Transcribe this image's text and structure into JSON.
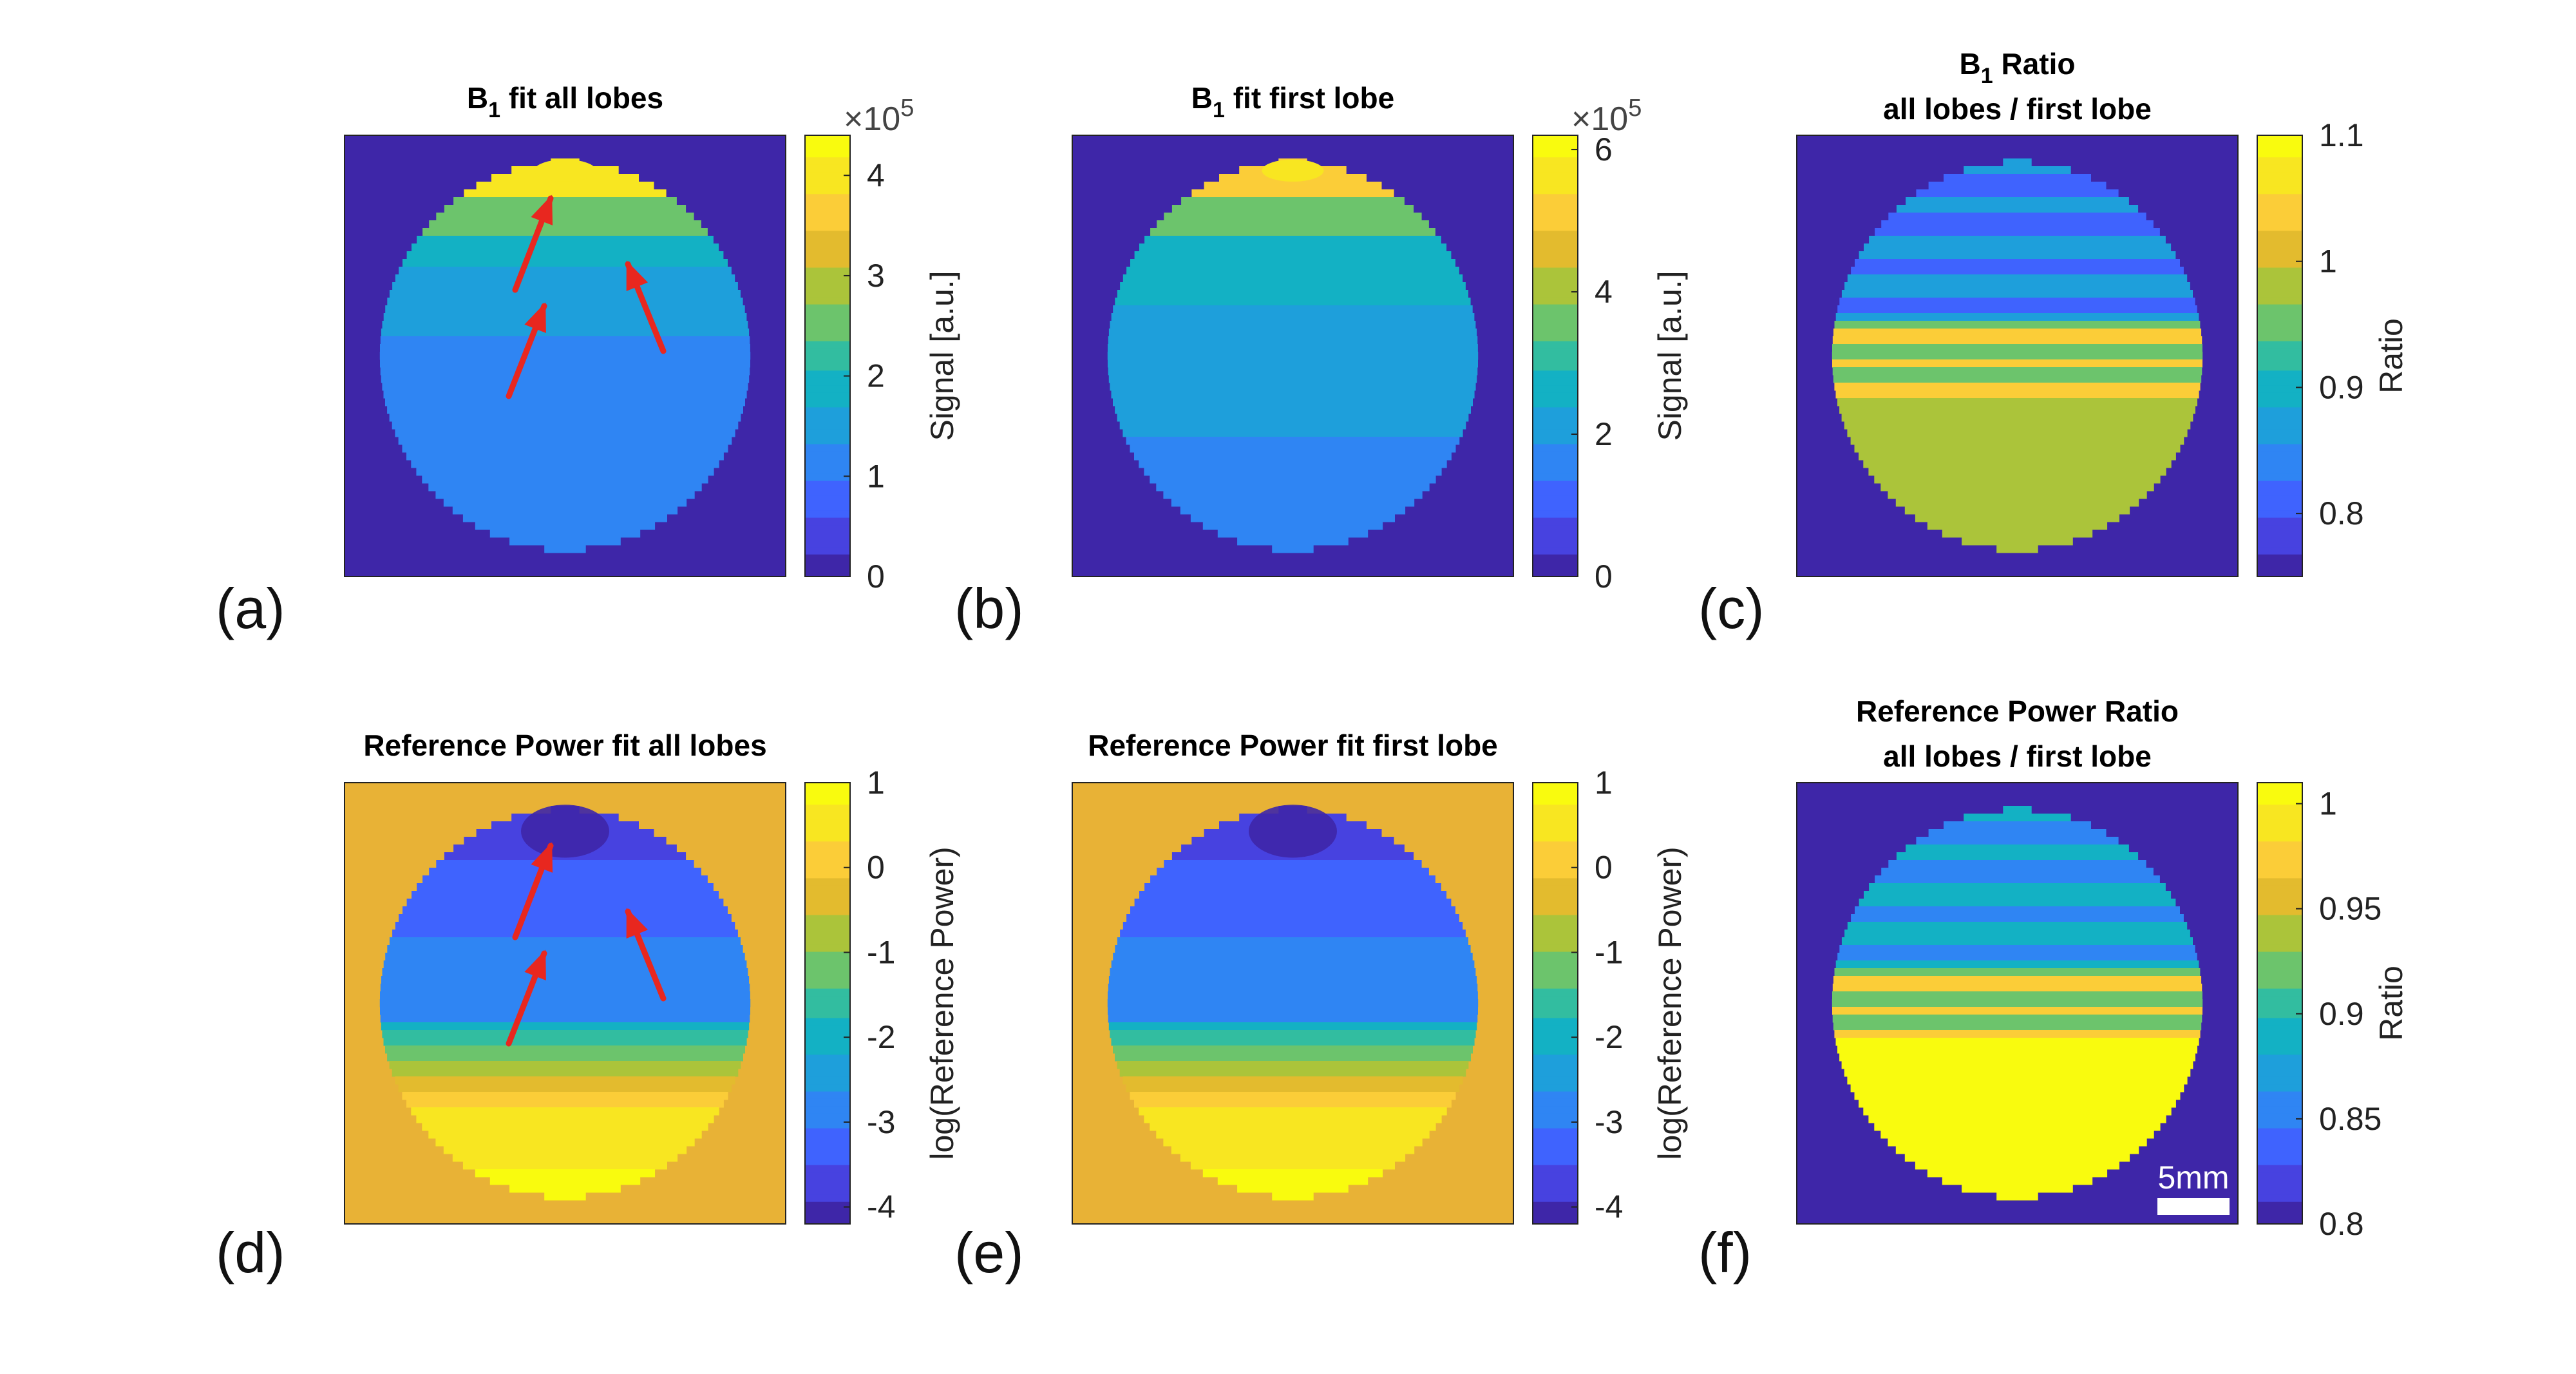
{
  "colors": {
    "parula": [
      "#3e26a8",
      "#4742e0",
      "#3f63fe",
      "#2f85f3",
      "#1e9fdb",
      "#13b1c4",
      "#32bda0",
      "#6cc46c",
      "#abc43a",
      "#e3bb2e",
      "#fbcd38",
      "#f8e621",
      "#f9fb0e"
    ],
    "arrow": "#e8271f",
    "background_blue": "#3e26a8",
    "background_gold": "#e8b236",
    "scalebar": "#ffffff"
  },
  "panels": [
    {
      "id": "a",
      "label": "(a)",
      "title": [
        "B",
        "1",
        " fit all lobes"
      ],
      "map": "b1_all",
      "colorbar": {
        "ticks": [
          "0",
          "1",
          "2",
          "3",
          "4"
        ],
        "tick_values": [
          0,
          1,
          2,
          3,
          4
        ],
        "range": [
          0,
          4.4
        ],
        "label": "Signal [a.u.]",
        "exponent": [
          "×10",
          "5"
        ]
      },
      "arrows": true
    },
    {
      "id": "b",
      "label": "(b)",
      "title": [
        "B",
        "1",
        " fit first lobe"
      ],
      "map": "b1_first",
      "colorbar": {
        "ticks": [
          "0",
          "2",
          "4",
          "6"
        ],
        "tick_values": [
          0,
          2,
          4,
          6
        ],
        "range": [
          0,
          6.2
        ],
        "label": "Signal [a.u.]",
        "exponent": [
          "×10",
          "5"
        ]
      },
      "arrows": false
    },
    {
      "id": "c",
      "label": "(c)",
      "title": [
        "B",
        "1",
        " Ratio"
      ],
      "subtitle": "all lobes / first lobe",
      "map": "b1_ratio",
      "colorbar": {
        "ticks": [
          "0.8",
          "0.9",
          "1",
          "1.1"
        ],
        "tick_values": [
          0.8,
          0.9,
          1.0,
          1.1
        ],
        "range": [
          0.75,
          1.1
        ],
        "label": "Ratio"
      },
      "arrows": false
    },
    {
      "id": "d",
      "label": "(d)",
      "title": [
        "Reference Power fit all lobes"
      ],
      "map": "ref_all",
      "colorbar": {
        "ticks": [
          "-4",
          "-3",
          "-2",
          "-1",
          "0",
          "1"
        ],
        "tick_values": [
          -4,
          -3,
          -2,
          -1,
          0,
          1
        ],
        "range": [
          -4.2,
          1
        ],
        "label": "log(Reference Power)"
      },
      "arrows": true
    },
    {
      "id": "e",
      "label": "(e)",
      "title": [
        "Reference Power fit first lobe"
      ],
      "map": "ref_first",
      "colorbar": {
        "ticks": [
          "-4",
          "-3",
          "-2",
          "-1",
          "0",
          "1"
        ],
        "tick_values": [
          -4,
          -3,
          -2,
          -1,
          0,
          1
        ],
        "range": [
          -4.2,
          1
        ],
        "label": "log(Reference Power)"
      },
      "arrows": false
    },
    {
      "id": "f",
      "label": "(f)",
      "title": [
        "Reference Power Ratio"
      ],
      "subtitle": "all lobes / first lobe",
      "map": "ref_ratio",
      "colorbar": {
        "ticks": [
          "0.8",
          "0.85",
          "0.9",
          "0.95",
          "1"
        ],
        "tick_values": [
          0.8,
          0.85,
          0.9,
          0.95,
          1.0
        ],
        "range": [
          0.8,
          1.01
        ],
        "label": "Ratio"
      },
      "arrows": false,
      "scalebar": "5mm"
    }
  ]
}
